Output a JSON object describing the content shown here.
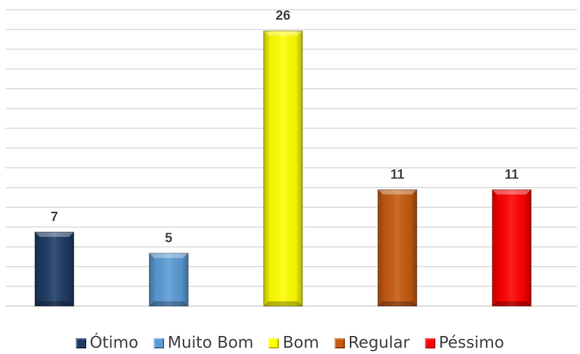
{
  "chart_data": {
    "type": "bar",
    "title": "",
    "xlabel": "",
    "ylabel": "",
    "categories": [
      "Ótimo",
      "Muito Bom",
      "Bom",
      "Regular",
      "Péssimo"
    ],
    "values": [
      7,
      5,
      26,
      11,
      11
    ],
    "ylim": [
      0,
      28
    ],
    "grid": true,
    "gridline_count": 15,
    "legend_position": "bottom",
    "colors": [
      "#1f3b64",
      "#5b9bd5",
      "#ffff00",
      "#c55a11",
      "#ff0000"
    ],
    "data_labels": [
      "7",
      "5",
      "26",
      "11",
      "11"
    ]
  }
}
